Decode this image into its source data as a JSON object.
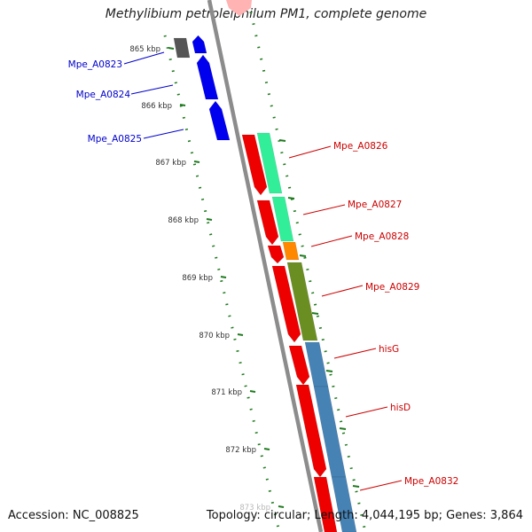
{
  "title": "Methylibium petroleiphilum PM1, complete genome",
  "footer": {
    "accession": "Accession: NC_008825",
    "summary": "Topology: circular; Length: 4,044,195 bp; Genes: 3,864"
  },
  "colors": {
    "backbone": "#8c8c8c",
    "tick": "#1f7a1f",
    "forward_label": "#0000cc",
    "reverse_label": "#cc0000",
    "forward_gene": "#0000ee",
    "reverse_gene": "#ee0000",
    "gray_gene": "#555555"
  },
  "scale": {
    "labels": [
      "865 kbp",
      "866 kbp",
      "867 kbp",
      "868 kbp",
      "869 kbp",
      "870 kbp",
      "871 kbp",
      "872 kbp",
      "873 kbp"
    ]
  },
  "genes": [
    {
      "name": "",
      "strand": "plus",
      "color": "#555555"
    },
    {
      "name": "Mpe_A0823",
      "strand": "plus",
      "color": "#0000ee"
    },
    {
      "name": "Mpe_A0824",
      "strand": "plus",
      "color": "#0000ee"
    },
    {
      "name": "Mpe_A0825",
      "strand": "plus",
      "color": "#0000ee"
    },
    {
      "name": "Mpe_A0826",
      "strand": "minus",
      "color": "#ee0000",
      "cog_color": "#33ee99"
    },
    {
      "name": "Mpe_A0827",
      "strand": "minus",
      "color": "#ee0000",
      "cog_color": "#33ee99"
    },
    {
      "name": "Mpe_A0828",
      "strand": "minus",
      "color": "#ee0000",
      "cog_color": "#ff8800"
    },
    {
      "name": "Mpe_A0829",
      "strand": "minus",
      "color": "#ee0000",
      "cog_color": "#6b8e23"
    },
    {
      "name": "hisG",
      "strand": "minus",
      "color": "#ee0000",
      "cog_color": "#4682b4"
    },
    {
      "name": "hisD",
      "strand": "minus",
      "color": "#ee0000",
      "cog_color": "#4682b4"
    },
    {
      "name": "Mpe_A0832",
      "strand": "minus",
      "color": "#ee0000",
      "cog_color": "#4682b4"
    }
  ]
}
